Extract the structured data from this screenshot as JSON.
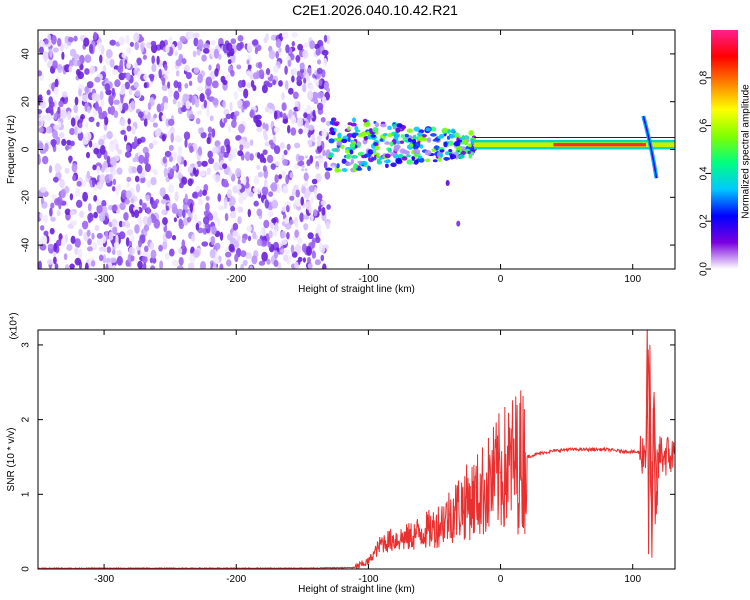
{
  "title": "C2E1.2026.040.10.42.R21",
  "chart_data": [
    {
      "type": "heatmap",
      "xlabel": "Height of straight line (km)",
      "ylabel": "Frequency (Hz)",
      "xlim": [
        -350,
        132
      ],
      "ylim": [
        -50,
        50
      ],
      "xticks": [
        -300,
        -200,
        -100,
        0,
        100
      ],
      "yticks": [
        -40,
        -20,
        0,
        20,
        40
      ],
      "colorbar": {
        "label": "Normalized spectral amplitude",
        "range": [
          0,
          1
        ],
        "ticks": [
          "0.0",
          "0.2",
          "0.4",
          "0.6",
          "0.8"
        ],
        "colors": [
          "#ffffff",
          "#7a00e0",
          "#0000ff",
          "#00c8ff",
          "#00ff80",
          "#80ff00",
          "#ffff00",
          "#ff8000",
          "#ff0000",
          "#ff2090"
        ]
      },
      "regions": [
        {
          "x": [
            -350,
            -130
          ],
          "f": [
            -50,
            48
          ],
          "description_level": "noise",
          "amplitude": 0.05
        },
        {
          "x": [
            -130,
            -20
          ],
          "f": [
            -15,
            12
          ],
          "description_level": "scattered",
          "amplitude": 0.35
        },
        {
          "x": [
            -20,
            132
          ],
          "f": [
            0,
            4
          ],
          "description_level": "carrier",
          "amplitude": 0.75
        }
      ],
      "carrier_frequency_hz": 2
    },
    {
      "type": "line",
      "xlabel": "Height of straight line (km)",
      "ylabel": "SNR (10 * v/v)",
      "y_multiplier": "(x10⁴)",
      "xlim": [
        -350,
        132
      ],
      "ylim": [
        0,
        3.2
      ],
      "xticks": [
        -300,
        -200,
        -100,
        0,
        100
      ],
      "yticks": [
        0,
        1,
        2,
        3
      ],
      "color": "#e83030",
      "x": [
        -350,
        -300,
        -250,
        -200,
        -150,
        -110,
        -100,
        -90,
        -80,
        -70,
        -60,
        -50,
        -40,
        -30,
        -20,
        -10,
        0,
        10,
        20,
        30,
        40,
        50,
        60,
        70,
        80,
        90,
        100,
        105,
        110,
        112,
        114,
        116,
        118,
        120,
        125,
        132
      ],
      "y": [
        0.01,
        0.01,
        0.01,
        0.01,
        0.01,
        0.02,
        0.1,
        0.35,
        0.4,
        0.42,
        0.5,
        0.55,
        0.7,
        0.85,
        0.95,
        1.1,
        1.3,
        1.42,
        1.5,
        1.55,
        1.58,
        1.6,
        1.6,
        1.6,
        1.6,
        1.58,
        1.57,
        1.56,
        1.55,
        2.9,
        0.6,
        2.3,
        0.8,
        1.55,
        1.52,
        1.5
      ]
    }
  ]
}
